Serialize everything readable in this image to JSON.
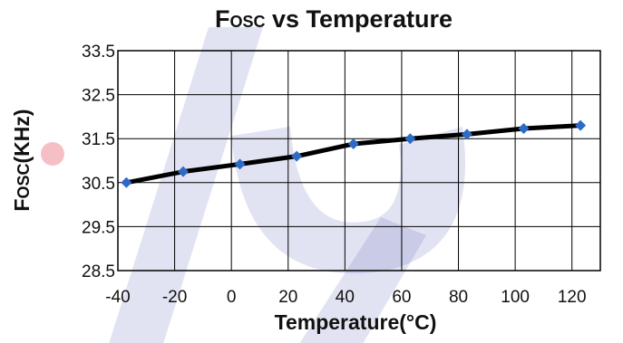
{
  "chart_data": {
    "type": "line",
    "title": {
      "main": "F",
      "sub": "OSC",
      "rest": " vs Temperature"
    },
    "xlabel": "Temperature(°C)",
    "ylabel": {
      "main": "F",
      "sub": "OSC",
      "rest": "(KHz)"
    },
    "xlim": [
      -40,
      130
    ],
    "ylim": [
      28.5,
      33.5
    ],
    "xticks": [
      -40,
      -20,
      0,
      20,
      40,
      60,
      80,
      100,
      120
    ],
    "yticks": [
      28.5,
      29.5,
      30.5,
      31.5,
      32.5,
      33.5
    ],
    "xtick_labels": [
      "-40",
      "-20",
      "0",
      "20",
      "40",
      "60",
      "80",
      "100",
      "120"
    ],
    "ytick_labels": [
      "28.5",
      "29.5",
      "30.5",
      "31.5",
      "32.5",
      "33.5"
    ],
    "grid": true,
    "series": [
      {
        "x": [
          -37,
          -17,
          3,
          23,
          43,
          63,
          83,
          103,
          123
        ],
        "y": [
          30.5,
          30.75,
          30.92,
          31.1,
          31.38,
          31.5,
          31.6,
          31.73,
          31.8
        ],
        "color": "#000000",
        "marker_color": "#2e6bc6"
      }
    ]
  }
}
